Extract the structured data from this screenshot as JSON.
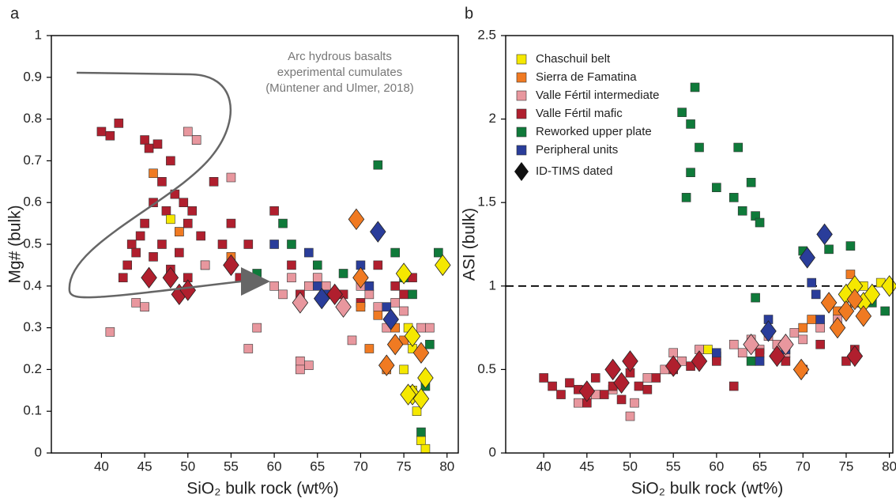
{
  "chart_data": [
    {
      "type": "scatter",
      "panel_label": "a",
      "ylabel": "Mg# (bulk)",
      "xlabel": "SiO₂ bulk rock (wt%)",
      "annotation": [
        "Arc hydrous basalts",
        "experimental cumulates",
        "(Müntener and Ulmer, 2018)"
      ],
      "xlim": [
        34.2,
        81.3
      ],
      "xticks": [
        40,
        45,
        50,
        55,
        60,
        65,
        70,
        75,
        80
      ],
      "ylim": [
        0,
        1
      ],
      "yticks": [
        0,
        0.1,
        0.2,
        0.3,
        0.4,
        0.5,
        0.6,
        0.7,
        0.8,
        0.9,
        1
      ],
      "series": [
        {
          "color": "#b01f2e",
          "x": [
            40,
            41,
            42,
            42.5,
            43,
            43.5,
            44,
            44.5,
            45,
            45,
            45.5,
            46,
            46,
            46.5,
            47,
            47,
            47.5,
            48,
            48,
            48.5,
            49,
            49,
            49.5,
            50,
            50,
            50.5,
            51,
            51.5,
            52,
            53,
            54,
            55,
            56,
            57,
            60,
            62,
            63,
            65,
            66,
            68,
            70,
            72,
            74,
            75,
            76
          ],
          "values": [
            0.77,
            0.76,
            0.79,
            0.42,
            0.45,
            0.5,
            0.48,
            0.52,
            0.75,
            0.55,
            0.73,
            0.6,
            0.47,
            0.74,
            0.5,
            0.65,
            0.58,
            0.7,
            0.44,
            0.62,
            0.53,
            0.48,
            0.6,
            0.55,
            0.42,
            0.58,
            0.75,
            0.52,
            0.45,
            0.65,
            0.5,
            0.55,
            0.42,
            0.5,
            0.58,
            0.45,
            0.38,
            0.42,
            0.4,
            0.38,
            0.36,
            0.45,
            0.4,
            0.38,
            0.42
          ],
          "dated_x": [
            45.5,
            48,
            49,
            50,
            55,
            67
          ],
          "dated_values": [
            0.42,
            0.42,
            0.38,
            0.39,
            0.45,
            0.38
          ]
        },
        {
          "color": "#e8979e",
          "x": [
            41,
            44,
            45,
            50,
            51,
            52,
            55,
            57,
            58,
            60,
            61,
            62,
            63,
            64,
            65,
            66,
            67,
            68,
            69,
            70,
            71,
            72,
            73,
            74,
            75,
            76,
            77,
            63,
            64,
            78
          ],
          "values": [
            0.29,
            0.36,
            0.35,
            0.77,
            0.75,
            0.45,
            0.66,
            0.25,
            0.3,
            0.4,
            0.38,
            0.42,
            0.22,
            0.21,
            0.42,
            0.4,
            0.38,
            0.35,
            0.27,
            0.4,
            0.38,
            0.35,
            0.3,
            0.36,
            0.34,
            0.28,
            0.3,
            0.2,
            0.4,
            0.3
          ],
          "dated_x": [
            63,
            68
          ],
          "dated_values": [
            0.36,
            0.35
          ]
        },
        {
          "color": "#f07a22",
          "x": [
            46,
            49,
            55,
            70,
            71,
            72,
            73,
            74,
            75
          ],
          "values": [
            0.67,
            0.53,
            0.47,
            0.35,
            0.25,
            0.33,
            0.2,
            0.3,
            0.27
          ],
          "dated_x": [
            69.5,
            70,
            73,
            74,
            77
          ],
          "dated_values": [
            0.56,
            0.42,
            0.21,
            0.26,
            0.24
          ]
        },
        {
          "color": "#f5e800",
          "x": [
            48,
            75,
            76,
            76.5,
            77,
            77.5,
            76,
            75.5
          ],
          "values": [
            0.56,
            0.2,
            0.25,
            0.1,
            0.03,
            0.01,
            0.15,
            0.3
          ],
          "dated_x": [
            75,
            76,
            76,
            77,
            77.5,
            79.5,
            75.5
          ],
          "dated_values": [
            0.43,
            0.28,
            0.14,
            0.13,
            0.18,
            0.45,
            0.14
          ]
        },
        {
          "color": "#0f7a3a",
          "x": [
            58,
            61,
            62,
            65,
            68,
            72,
            74,
            75,
            76,
            77,
            78,
            79,
            77.5
          ],
          "values": [
            0.43,
            0.55,
            0.5,
            0.45,
            0.43,
            0.69,
            0.48,
            0.42,
            0.38,
            0.05,
            0.26,
            0.48,
            0.16
          ],
          "dated_x": [],
          "dated_values": []
        },
        {
          "color": "#2a3d9a",
          "x": [
            60,
            64,
            65,
            66,
            70,
            71,
            73
          ],
          "values": [
            0.5,
            0.48,
            0.4,
            0.38,
            0.45,
            0.4,
            0.35
          ],
          "dated_x": [
            65.5,
            72,
            73.5
          ],
          "dated_values": [
            0.37,
            0.53,
            0.32
          ]
        }
      ]
    },
    {
      "type": "scatter",
      "panel_label": "b",
      "ylabel": "ASI (bulk)",
      "xlabel": "SiO₂ bulk rock (wt%)",
      "xlim": [
        35.6,
        80.4
      ],
      "xticks": [
        40,
        45,
        50,
        55,
        60,
        65,
        70,
        75,
        80
      ],
      "ylim": [
        0,
        2.5
      ],
      "yticks": [
        0,
        0.5,
        1,
        1.5,
        2,
        2.5
      ],
      "hline": 1,
      "legend": "upper left",
      "dated_label": "ID-TIMS dated",
      "series": [
        {
          "name": "Chaschuil belt",
          "color": "#f5e800",
          "x": [
            59,
            75,
            76,
            77,
            78,
            79
          ],
          "values": [
            0.62,
            0.95,
            0.9,
            1.0,
            0.95,
            1.02
          ],
          "dated_x": [
            75,
            76,
            77,
            78,
            80
          ],
          "dated_values": [
            0.95,
            1.0,
            0.9,
            0.95,
            1.0
          ]
        },
        {
          "name": "Sierra de Famatina",
          "color": "#f07a22",
          "x": [
            70,
            71,
            74,
            75.5,
            76
          ],
          "values": [
            0.75,
            0.8,
            0.85,
            1.07,
            0.9
          ],
          "dated_x": [
            69.8,
            73,
            74,
            75,
            76,
            77
          ],
          "dated_values": [
            0.5,
            0.9,
            0.75,
            0.85,
            0.92,
            0.82
          ]
        },
        {
          "name": "Valle Fértil intermediate",
          "color": "#e8979e",
          "x": [
            44,
            46,
            48,
            50,
            50.5,
            52,
            54,
            55,
            56,
            58,
            60,
            62,
            63,
            64,
            65,
            66,
            67,
            68,
            69,
            70,
            72,
            74,
            75
          ],
          "values": [
            0.3,
            0.35,
            0.38,
            0.22,
            0.3,
            0.45,
            0.5,
            0.6,
            0.55,
            0.62,
            0.58,
            0.65,
            0.6,
            0.68,
            0.62,
            0.7,
            0.65,
            0.6,
            0.72,
            0.68,
            0.75,
            0.8,
            0.85
          ],
          "dated_x": [
            64,
            68
          ],
          "dated_values": [
            0.65,
            0.65
          ]
        },
        {
          "name": "Valle Fértil mafic",
          "color": "#b01f2e",
          "x": [
            40,
            41,
            42,
            43,
            44,
            45,
            46,
            47,
            48,
            49,
            50,
            51,
            52,
            53,
            55,
            57,
            60,
            62,
            65,
            68,
            70,
            72,
            75,
            76
          ],
          "values": [
            0.45,
            0.4,
            0.35,
            0.42,
            0.38,
            0.3,
            0.45,
            0.35,
            0.4,
            0.32,
            0.48,
            0.4,
            0.38,
            0.45,
            0.5,
            0.52,
            0.55,
            0.4,
            0.6,
            0.55,
            0.5,
            0.65,
            0.55,
            0.62
          ],
          "dated_x": [
            45,
            48,
            49,
            50,
            55,
            58,
            67,
            76
          ],
          "dated_values": [
            0.37,
            0.5,
            0.42,
            0.55,
            0.52,
            0.55,
            0.58,
            0.58
          ]
        },
        {
          "name": "Reworked upper plate",
          "color": "#0f7a3a",
          "x": [
            56,
            56.5,
            57,
            57.5,
            58,
            57,
            60,
            62,
            62.5,
            63,
            64,
            64.5,
            65,
            64.5,
            70,
            73,
            75.5,
            64,
            78,
            79.5
          ],
          "values": [
            2.04,
            1.53,
            1.97,
            2.19,
            1.83,
            1.68,
            1.59,
            1.53,
            1.83,
            1.45,
            1.62,
            1.42,
            1.38,
            0.93,
            1.21,
            1.22,
            1.24,
            0.55,
            0.9,
            0.85
          ],
          "dated_x": [],
          "dated_values": []
        },
        {
          "name": "Peripheral units",
          "color": "#2a3d9a",
          "x": [
            60,
            65,
            66,
            68,
            71,
            71.5,
            72
          ],
          "values": [
            0.6,
            0.55,
            0.8,
            0.62,
            1.02,
            0.95,
            0.8
          ],
          "dated_x": [
            66,
            70.5,
            72.5
          ],
          "dated_values": [
            0.73,
            1.17,
            1.31
          ]
        }
      ]
    }
  ]
}
